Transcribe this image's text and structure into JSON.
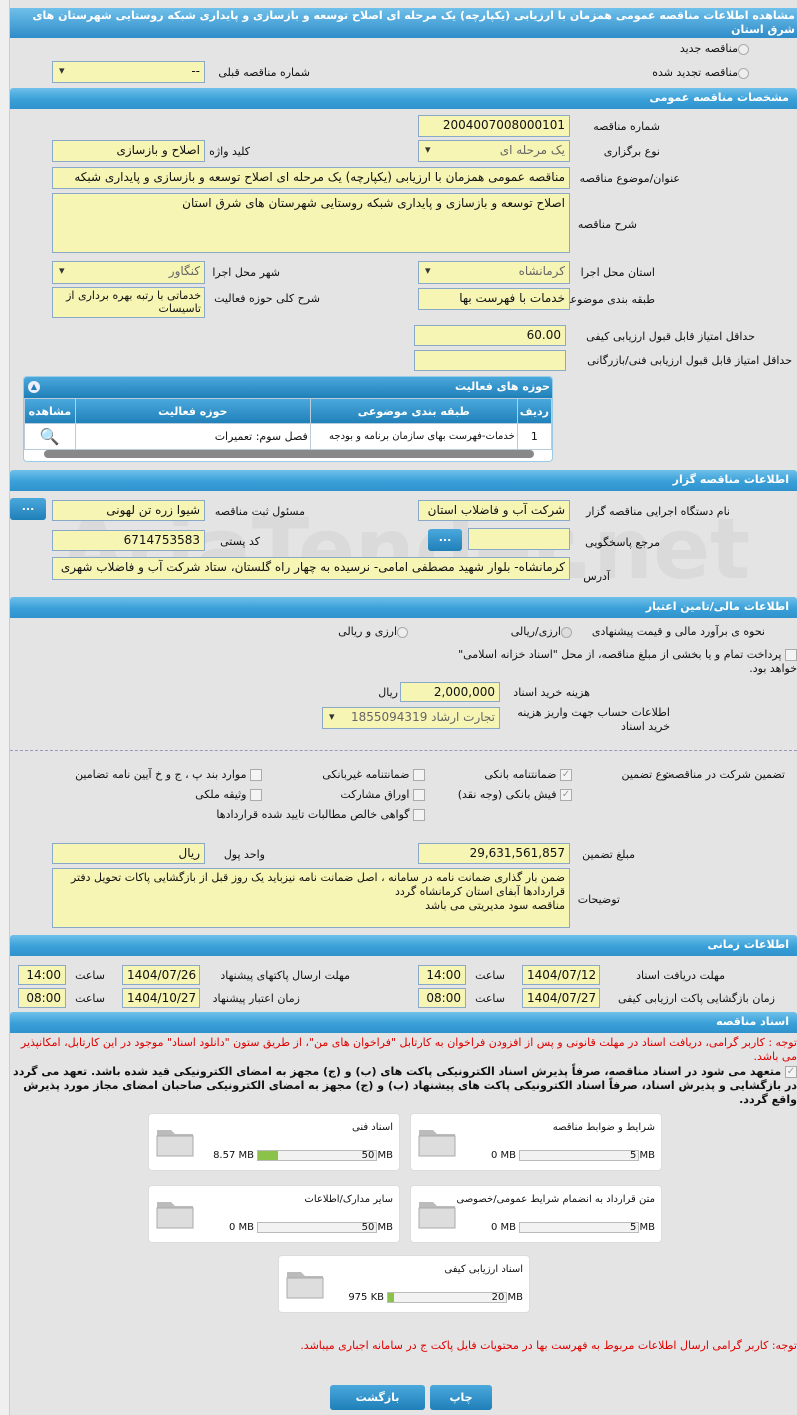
{
  "title": "مشاهده اطلاعات مناقصه عمومی همزمان با ارزیابی (یکپارچه) یک مرحله ای اصلاح توسعه و بازسازی و پایداری شبکه روستایی شهرستان های شرق استان",
  "top": {
    "new_tender": "مناقصه جدید",
    "renewed_tender": "مناقصه تجدید شده",
    "prev_number_label": "شماره مناقصه قبلی",
    "prev_number_value": "--"
  },
  "general": {
    "header": "مشخصات مناقصه عمومی",
    "number_label": "شماره مناقصه",
    "number": "2004007008000101",
    "type_label": "نوع برگزاری",
    "type": "یک مرحله ای",
    "keyword_label": "کلید واژه",
    "keyword": "اصلاح و بازسازی",
    "subject_label": "عنوان/موضوع مناقصه",
    "subject": "مناقصه عمومی همزمان با ارزیابی (یکپارچه) یک مرحله ای اصلاح توسعه و بازسازی و پایداری شبکه",
    "desc_label": "شرح مناقصه",
    "desc": "اصلاح توسعه و بازسازی و پایداری شبکه روستایی شهرستان های شرق استان",
    "province_label": "استان محل اجرا",
    "province": "کرمانشاه",
    "city_label": "شهر محل اجرا",
    "city": "کنگاور",
    "category_label": "طبقه بندی موضوعی",
    "category": "خدمات با فهرست بها",
    "activity_desc_label": "شرح کلی حوزه فعالیت",
    "activity_desc": "خدماتی با رتبه بهره برداری از تاسیسات",
    "min_quality_label": "حداقل امتیاز قابل قبول ارزیابی کیفی",
    "min_quality": "60.00",
    "min_tech_label": "حداقل امتیاز قابل قبول ارزیابی فنی/بازرگانی",
    "min_tech": ""
  },
  "activities": {
    "header": "حوزه های فعالیت",
    "columns": [
      "ردیف",
      "طبقه بندی موضوعی",
      "حوزه فعالیت",
      "مشاهده"
    ],
    "rows": [
      {
        "index": "1",
        "category": "خدمات-فهرست بهای سازمان برنامه و بودجه",
        "field": "فصل سوم: تعمیرات"
      }
    ]
  },
  "organizer": {
    "header": "اطلاعات مناقصه گزار",
    "org_label": "نام دستگاه اجرایی مناقصه گزار",
    "org": "شرکت آب و فاضلاب استان",
    "resp_label": "مسئول ثبت مناقصه",
    "resp": "شیوا زره تن لهونی",
    "ref_label": "مرجع پاسخگویی",
    "ref": "",
    "postal_label": "کد پستی",
    "postal": "6714753583",
    "address_label": "آدرس",
    "address": "کرمانشاه- بلوار شهید مصطفی امامی- نرسیده به چهار راه گلستان، ستاد شرکت  آب و فاضلاب شهری",
    "more": "..."
  },
  "watermark": "AriaTender.net",
  "finance": {
    "header": "اطلاعات مالی/تامین اعتبار",
    "estimate_label": "نحوه ی برآورد مالی و قیمت پیشنهادی",
    "opt1": "ارزی/ریالی",
    "opt2": "ارزی و ریالی",
    "treasury": "پرداخت تمام و یا بخشی از مبلغ مناقصه، از محل \"اسناد خزانه اسلامی\" خواهد بود.",
    "doc_fee_label": "هزینه خرید اسناد",
    "doc_fee": "2,000,000",
    "currency": "ریال",
    "account_label": "اطلاعات حساب جهت واریز هزینه خرید اسناد",
    "account": "تجارت ارشاد 1855094319"
  },
  "guarantee": {
    "label": "تضمین شرکت در مناقصه:",
    "type_label": "نوع تضمین",
    "options": [
      {
        "label": "ضمانتنامه بانکی",
        "checked": true
      },
      {
        "label": "ضمانتنامه غیربانکی",
        "checked": false
      },
      {
        "label": "موارد بند پ ، ج و خ آیین نامه تضامین",
        "checked": false
      },
      {
        "label": "فیش بانکی (وجه نقد)",
        "checked": true
      },
      {
        "label": "اوراق مشارکت",
        "checked": false
      },
      {
        "label": "وثیقه ملکی",
        "checked": false
      },
      {
        "label": "گواهی خالص مطالبات تایید شده قراردادها",
        "checked": false
      }
    ],
    "amount_label": "مبلغ تضمین",
    "amount": "29,631,561,857",
    "unit_label": "واحد پول",
    "unit": "ریال",
    "notes_label": "توضیحات",
    "notes": "ضمن بار گذاری ضمانت نامه در سامانه ، اصل ضمانت نامه نیزباید یک روز قبل از بازگشایی پاکات تحویل دفتر قراردادها آبفای استان کرمانشاه گردد\nمناقصه سود مدیریتی می باشد"
  },
  "timing": {
    "header": "اطلاعات زمانی",
    "time_label": "ساعت",
    "doc_deadline_label": "مهلت دریافت اسناد",
    "doc_deadline": "1404/07/12",
    "doc_deadline_time": "14:00",
    "submit_label": "مهلت ارسال پاکتهای پیشنهاد",
    "submit": "1404/07/26",
    "submit_time": "14:00",
    "open_label": "زمان بازگشایی پاکت ارزیابی کیفی",
    "open": "1404/07/27",
    "open_time": "08:00",
    "validity_label": "زمان اعتبار پیشنهاد",
    "validity": "1404/10/27",
    "validity_time": "08:00"
  },
  "docs": {
    "header": "اسناد مناقصه",
    "notice": "توجه : کاربر گرامی، دریافت اسناد در مهلت قانونی و پس از افزودن فراخوان به کارتابل \"فراخوان های من\"، از طریق ستون \"دانلود اسناد\" موجود در این کارتابل، امکانپذیر می باشد.",
    "commitment": "متعهد می شود در اسناد مناقصه، صرفاً پذیرش اسناد الکترونیکی پاکت های (ب) و (ج) مجهز به امضای الکترونیکی قید شده باشد. تعهد می گردد در بازگشایی و پذیرش اسناد، صرفاً اسناد الکترونیکی پاکت های پیشنهاد (ب) و (ج) مجهز به امضای الکترونیکی صاحبان امضای مجاز مورد پذیرش واقع گردد.",
    "files": [
      {
        "name": "شرایط و ضوابط مناقصه",
        "size": "0 MB",
        "max": "5 MB",
        "percent": 0
      },
      {
        "name": "اسناد فنی",
        "size": "8.57 MB",
        "max": "50 MB",
        "percent": 17
      },
      {
        "name": "متن قرارداد به انضمام شرایط عمومی/خصوصی",
        "size": "0 MB",
        "max": "5 MB",
        "percent": 0
      },
      {
        "name": "سایر مدارک/اطلاعات",
        "size": "0 MB",
        "max": "50 MB",
        "percent": 0
      },
      {
        "name": "اسناد ارزیابی کیفی",
        "size": "975 KB",
        "max": "20 MB",
        "percent": 5
      }
    ],
    "note": "توجه: کاربر گرامی ارسال اطلاعات مربوط به فهرست بها در محتویات فایل پاکت ج در سامانه اجباری میباشد."
  },
  "buttons": {
    "print": "چاپ",
    "back": "بازگشت"
  },
  "colors": {
    "accent": "#2f92cc",
    "input": "#f7f5b4",
    "alert": "#e00000"
  }
}
